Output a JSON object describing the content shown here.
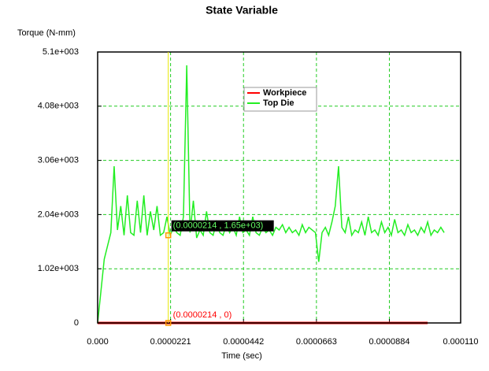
{
  "chart_data": {
    "type": "line",
    "title": "State Variable",
    "y_label": "Torque (N-mm)",
    "x_label": "Time (sec)",
    "xlim": [
      0,
      0.00011
    ],
    "ylim": [
      0,
      5100
    ],
    "xticks": [
      {
        "value": 0,
        "label": "0.000"
      },
      {
        "value": 2.21e-05,
        "label": "0.0000221"
      },
      {
        "value": 4.42e-05,
        "label": "0.0000442"
      },
      {
        "value": 6.63e-05,
        "label": "0.0000663"
      },
      {
        "value": 8.84e-05,
        "label": "0.0000884"
      },
      {
        "value": 0.00011,
        "label": "0.000110"
      }
    ],
    "yticks": [
      0,
      {
        "value": 1020,
        "label": "1.02e+003"
      },
      {
        "value": 2040,
        "label": "2.04e+003"
      },
      {
        "value": 3060,
        "label": "3.06e+003"
      },
      {
        "value": 4080,
        "label": "4.08e+003"
      },
      {
        "value": 5100,
        "label": "5.1e+003"
      }
    ],
    "grid": true,
    "legend": "upper center",
    "series": [
      {
        "name": "Workpiece",
        "color": "#ff0000",
        "x": [
          0,
          0.0001
        ],
        "values": [
          0,
          0
        ]
      },
      {
        "name": "Top Die",
        "color": "#22ee22",
        "x": [
          0,
          1e-06,
          2e-06,
          3e-06,
          4e-06,
          5e-06,
          6e-06,
          7e-06,
          8e-06,
          9e-06,
          1e-05,
          1.1e-05,
          1.2e-05,
          1.3e-05,
          1.4e-05,
          1.5e-05,
          1.6e-05,
          1.7e-05,
          1.8e-05,
          1.9e-05,
          2e-05,
          2.1e-05,
          2.2e-05,
          2.3e-05,
          2.4e-05,
          2.5e-05,
          2.6e-05,
          2.7e-05,
          2.8e-05,
          2.9e-05,
          3e-05,
          3.1e-05,
          3.2e-05,
          3.3e-05,
          3.4e-05,
          3.5e-05,
          3.6e-05,
          3.7e-05,
          3.8e-05,
          3.9e-05,
          4e-05,
          4.1e-05,
          4.2e-05,
          4.3e-05,
          4.4e-05,
          4.5e-05,
          4.6e-05,
          4.7e-05,
          4.8e-05,
          4.9e-05,
          5e-05,
          5.1e-05,
          5.2e-05,
          5.3e-05,
          5.4e-05,
          5.5e-05,
          5.6e-05,
          5.7e-05,
          5.8e-05,
          5.9e-05,
          6e-05,
          6.1e-05,
          6.2e-05,
          6.3e-05,
          6.4e-05,
          6.5e-05,
          6.6e-05,
          6.7e-05,
          6.8e-05,
          6.9e-05,
          7e-05,
          7.1e-05,
          7.2e-05,
          7.3e-05,
          7.4e-05,
          7.5e-05,
          7.6e-05,
          7.7e-05,
          7.8e-05,
          7.9e-05,
          8e-05,
          8.1e-05,
          8.2e-05,
          8.3e-05,
          8.4e-05,
          8.5e-05,
          8.6e-05,
          8.7e-05,
          8.8e-05,
          8.9e-05,
          9e-05,
          9.1e-05,
          9.2e-05,
          9.3e-05,
          9.4e-05,
          9.5e-05,
          9.6e-05,
          9.7e-05,
          9.8e-05,
          9.9e-05,
          0.0001,
          0.000101,
          0.000102,
          0.000103,
          0.000104,
          0.000105
        ],
        "values": [
          0,
          600,
          1200,
          1450,
          1700,
          2950,
          1750,
          2200,
          1650,
          2400,
          1700,
          1650,
          2300,
          1700,
          2400,
          1650,
          2100,
          1750,
          2200,
          1650,
          1700,
          2000,
          1650,
          1800,
          1700,
          1650,
          2000,
          4850,
          1700,
          2300,
          1600,
          1750,
          1650,
          2100,
          1700,
          1650,
          1900,
          1700,
          1650,
          1850,
          1700,
          1800,
          1650,
          2000,
          1700,
          1750,
          1650,
          2000,
          1700,
          1650,
          1800,
          1700,
          1750,
          1650,
          1800,
          1750,
          1850,
          1700,
          1800,
          1700,
          1750,
          1650,
          1850,
          1700,
          1800,
          1750,
          1700,
          1150,
          1700,
          1800,
          1650,
          1900,
          2200,
          2950,
          1800,
          1700,
          2000,
          1650,
          1750,
          1700,
          1900,
          1650,
          2000,
          1700,
          1750,
          1650,
          1900,
          1700,
          1800,
          1650,
          1950,
          1700,
          1750,
          1650,
          1850,
          1700,
          1750,
          1650,
          1800,
          1700,
          1900,
          1650,
          1750,
          1700,
          1800,
          1700
        ]
      }
    ],
    "cursor_x": 2.14e-05,
    "annotations": [
      {
        "text": "(0.0000214 , 1.65e+03)",
        "x": 2.14e-05,
        "y": 1650
      },
      {
        "text": "(0.0000214 , 0)",
        "x": 2.14e-05,
        "y": 0
      }
    ]
  }
}
